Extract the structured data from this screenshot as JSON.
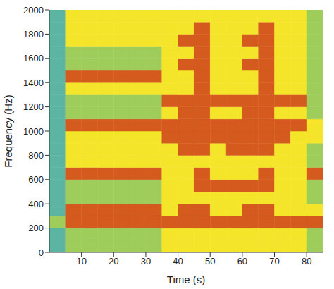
{
  "chart_data": {
    "type": "heatmap",
    "x_label": "Time (s)",
    "y_label": "Frequency (Hz)",
    "xlim": [
      0,
      85
    ],
    "ylim": [
      0,
      2000
    ],
    "xticks": [
      10,
      20,
      30,
      40,
      50,
      60,
      70,
      80
    ],
    "yticks": [
      0,
      200,
      400,
      600,
      800,
      1000,
      1200,
      1400,
      1600,
      1800,
      2000
    ],
    "x_bins": [
      0,
      5,
      10,
      15,
      20,
      25,
      30,
      35,
      40,
      45,
      50,
      55,
      60,
      65,
      70,
      75,
      80,
      85
    ],
    "y_bins": [
      0,
      100,
      200,
      300,
      400,
      500,
      600,
      700,
      800,
      900,
      1000,
      1100,
      1200,
      1300,
      1400,
      1500,
      1600,
      1700,
      1800,
      1900,
      2000
    ],
    "colors": [
      "#5bb5a2",
      "#9fcd5c",
      "#f5e52a",
      "#d45a1e"
    ],
    "cells": [
      [
        0,
        1,
        1,
        1,
        1,
        1,
        1,
        2,
        2,
        2,
        2,
        2,
        2,
        2,
        2,
        2,
        1
      ],
      [
        0,
        1,
        1,
        1,
        1,
        1,
        1,
        2,
        2,
        2,
        2,
        2,
        2,
        2,
        2,
        2,
        1
      ],
      [
        1,
        3,
        3,
        3,
        3,
        3,
        3,
        3,
        3,
        3,
        3,
        3,
        3,
        3,
        3,
        3,
        3
      ],
      [
        0,
        3,
        3,
        3,
        3,
        3,
        3,
        2,
        3,
        3,
        2,
        2,
        3,
        3,
        2,
        2,
        2
      ],
      [
        0,
        1,
        1,
        1,
        1,
        1,
        1,
        2,
        2,
        2,
        2,
        2,
        2,
        2,
        2,
        2,
        1
      ],
      [
        0,
        1,
        1,
        1,
        1,
        1,
        1,
        2,
        2,
        3,
        3,
        3,
        3,
        3,
        2,
        2,
        1
      ],
      [
        0,
        3,
        3,
        3,
        3,
        3,
        3,
        2,
        2,
        3,
        2,
        2,
        2,
        3,
        2,
        2,
        3
      ],
      [
        0,
        2,
        2,
        2,
        2,
        2,
        2,
        2,
        2,
        2,
        2,
        2,
        2,
        2,
        2,
        2,
        1
      ],
      [
        0,
        2,
        2,
        2,
        2,
        2,
        2,
        2,
        3,
        3,
        2,
        3,
        3,
        3,
        2,
        2,
        1
      ],
      [
        0,
        2,
        2,
        2,
        2,
        2,
        2,
        3,
        3,
        3,
        3,
        3,
        3,
        3,
        3,
        2,
        2
      ],
      [
        0,
        3,
        3,
        3,
        3,
        3,
        3,
        3,
        3,
        3,
        3,
        3,
        3,
        3,
        3,
        3,
        2
      ],
      [
        0,
        1,
        1,
        1,
        1,
        1,
        1,
        2,
        3,
        3,
        2,
        2,
        3,
        3,
        2,
        2,
        1
      ],
      [
        0,
        1,
        1,
        1,
        1,
        1,
        1,
        3,
        3,
        3,
        3,
        3,
        3,
        3,
        3,
        3,
        1
      ],
      [
        0,
        2,
        2,
        2,
        2,
        2,
        2,
        2,
        2,
        3,
        2,
        2,
        2,
        3,
        2,
        2,
        1
      ],
      [
        0,
        3,
        3,
        3,
        3,
        3,
        3,
        2,
        2,
        3,
        2,
        2,
        2,
        3,
        2,
        2,
        1
      ],
      [
        0,
        1,
        1,
        1,
        1,
        1,
        1,
        2,
        3,
        3,
        2,
        2,
        3,
        3,
        2,
        2,
        1
      ],
      [
        0,
        1,
        1,
        1,
        1,
        1,
        1,
        2,
        2,
        3,
        2,
        2,
        2,
        3,
        2,
        2,
        1
      ],
      [
        0,
        2,
        2,
        2,
        2,
        2,
        2,
        2,
        3,
        3,
        2,
        2,
        3,
        3,
        2,
        2,
        1
      ],
      [
        0,
        2,
        2,
        2,
        2,
        2,
        2,
        2,
        2,
        3,
        2,
        2,
        2,
        3,
        2,
        2,
        1
      ],
      [
        0,
        2,
        2,
        2,
        2,
        2,
        2,
        2,
        2,
        2,
        2,
        2,
        2,
        2,
        2,
        2,
        1
      ]
    ]
  }
}
